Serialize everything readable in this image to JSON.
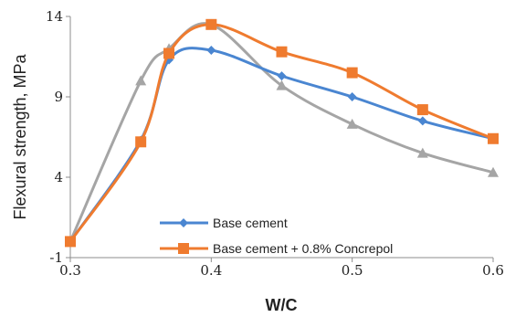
{
  "chart_data": {
    "type": "line",
    "xlabel": "W/C",
    "ylabel": "Flexural strength, MPa",
    "xlim": [
      0.3,
      0.6
    ],
    "ylim": [
      -1,
      14
    ],
    "x_ticks": [
      "0.3",
      "0.4",
      "0.5",
      "0.6"
    ],
    "y_ticks": [
      "-1",
      "4",
      "9",
      "14"
    ],
    "grid": false,
    "legend_position": "bottom-left",
    "series": [
      {
        "name": "Base cement",
        "color": "#4a86d1",
        "marker": "diamond",
        "x": [
          0.3,
          0.35,
          0.37,
          0.4,
          0.45,
          0.5,
          0.55,
          0.6
        ],
        "y": [
          0.0,
          6.3,
          11.3,
          11.9,
          10.3,
          9.0,
          7.5,
          6.4
        ]
      },
      {
        "name": "Base cement + 0.8% Concrepol",
        "color": "#ef7b2f",
        "marker": "square",
        "x": [
          0.3,
          0.35,
          0.37,
          0.4,
          0.45,
          0.5,
          0.55,
          0.6
        ],
        "y": [
          0.0,
          6.2,
          11.7,
          13.5,
          11.8,
          10.5,
          8.2,
          6.4
        ]
      },
      {
        "name": "",
        "color": "#a5a5a5",
        "marker": "triangle",
        "x": [
          0.3,
          0.35,
          0.37,
          0.4,
          0.45,
          0.5,
          0.55,
          0.6
        ],
        "y": [
          0.0,
          10.0,
          12.0,
          13.5,
          9.7,
          7.3,
          5.5,
          4.3
        ]
      }
    ]
  }
}
